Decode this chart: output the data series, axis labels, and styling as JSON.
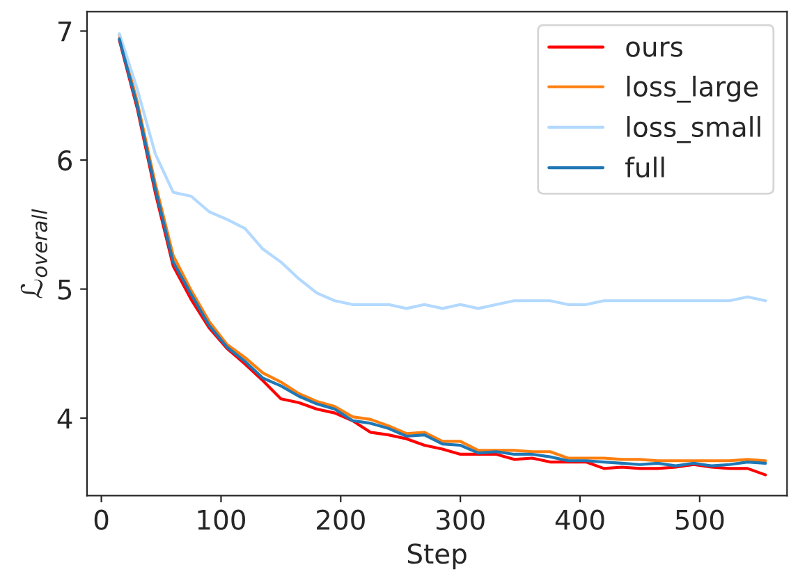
{
  "chart_data": {
    "type": "line",
    "xlabel": "Step",
    "ylabel": "ℒ$_{overall}$",
    "x": [
      15,
      30,
      45,
      60,
      75,
      90,
      105,
      120,
      135,
      150,
      165,
      180,
      195,
      210,
      225,
      240,
      255,
      270,
      285,
      300,
      315,
      330,
      345,
      360,
      375,
      390,
      405,
      420,
      435,
      450,
      465,
      480,
      495,
      510,
      525,
      540,
      555
    ],
    "series": [
      {
        "name": "ours",
        "color": "#ff0000",
        "values": [
          6.93,
          6.4,
          5.75,
          5.18,
          4.92,
          4.7,
          4.54,
          4.42,
          4.29,
          4.15,
          4.12,
          4.07,
          4.04,
          3.98,
          3.89,
          3.87,
          3.84,
          3.79,
          3.76,
          3.72,
          3.72,
          3.72,
          3.68,
          3.69,
          3.66,
          3.66,
          3.66,
          3.61,
          3.62,
          3.61,
          3.61,
          3.62,
          3.64,
          3.62,
          3.61,
          3.61,
          3.56
        ]
      },
      {
        "name": "loss_large",
        "color": "#ff7f0e",
        "values": [
          6.97,
          6.45,
          5.82,
          5.26,
          4.99,
          4.75,
          4.57,
          4.47,
          4.35,
          4.28,
          4.19,
          4.13,
          4.09,
          4.01,
          3.99,
          3.94,
          3.88,
          3.89,
          3.82,
          3.82,
          3.75,
          3.75,
          3.75,
          3.74,
          3.74,
          3.69,
          3.69,
          3.69,
          3.68,
          3.68,
          3.67,
          3.67,
          3.67,
          3.67,
          3.67,
          3.68,
          3.67
        ]
      },
      {
        "name": "loss_small",
        "color": "#b3d9ff",
        "values": [
          6.98,
          6.55,
          6.05,
          5.75,
          5.72,
          5.6,
          5.54,
          5.47,
          5.31,
          5.21,
          5.08,
          4.97,
          4.91,
          4.88,
          4.88,
          4.88,
          4.85,
          4.88,
          4.85,
          4.88,
          4.85,
          4.88,
          4.91,
          4.91,
          4.91,
          4.88,
          4.88,
          4.91,
          4.91,
          4.91,
          4.91,
          4.91,
          4.91,
          4.91,
          4.91,
          4.94,
          4.91
        ]
      },
      {
        "name": "full",
        "color": "#1f77b4",
        "values": [
          6.94,
          6.42,
          5.78,
          5.21,
          4.96,
          4.72,
          4.55,
          4.44,
          4.31,
          4.25,
          4.17,
          4.11,
          4.07,
          3.98,
          3.96,
          3.92,
          3.86,
          3.87,
          3.8,
          3.79,
          3.73,
          3.74,
          3.72,
          3.72,
          3.7,
          3.67,
          3.67,
          3.66,
          3.65,
          3.64,
          3.65,
          3.63,
          3.65,
          3.63,
          3.64,
          3.66,
          3.65
        ]
      }
    ],
    "xlim": [
      -12,
      573
    ],
    "ylim": [
      3.4,
      7.15
    ],
    "xticks": [
      0,
      100,
      200,
      300,
      400,
      500
    ],
    "yticks": [
      4,
      5,
      6,
      7
    ],
    "grid": false,
    "legend": "top right",
    "marker": "none",
    "line_style": "solid"
  }
}
